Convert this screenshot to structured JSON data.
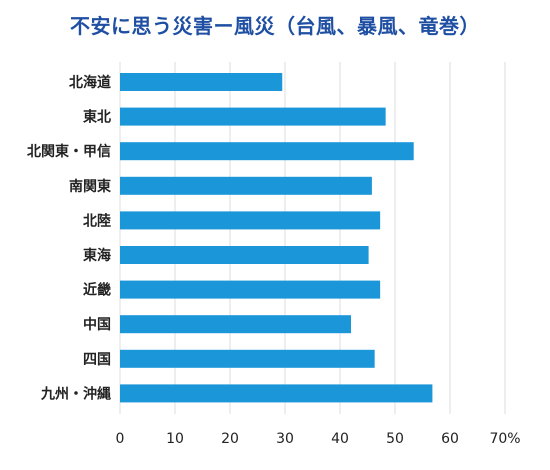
{
  "chart_data": {
    "type": "bar",
    "orientation": "horizontal",
    "title": "不安に思う災害ー風災（台風、暴風、竜巻）",
    "categories": [
      "北海道",
      "東北",
      "北関東・甲信",
      "南関東",
      "北陸",
      "東海",
      "近畿",
      "中国",
      "四国",
      "九州・沖縄"
    ],
    "values": [
      29.5,
      48.3,
      53.4,
      45.8,
      47.3,
      45.2,
      47.3,
      42.0,
      46.3,
      56.8
    ],
    "x_ticks": [
      "0",
      "10",
      "20",
      "30",
      "40",
      "50",
      "60",
      "70%"
    ],
    "xlim": [
      0,
      70
    ],
    "grid": true,
    "bar_color": "#1a96d9",
    "title_color": "#1f4fa3"
  }
}
